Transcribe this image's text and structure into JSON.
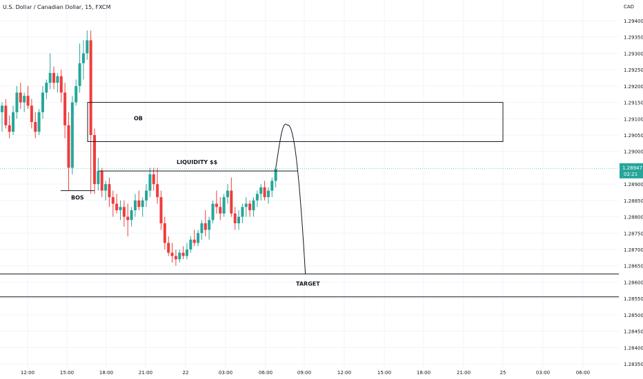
{
  "title": "U.S. Dollar / Canadian Dollar, 15, FXCM",
  "currency": "CAD",
  "current_price": {
    "value": "1.28947",
    "countdown": "02:21",
    "color": "#26a69a"
  },
  "colors": {
    "up": "#26a69a",
    "down": "#ef3c3c",
    "grid": "#f0f3fa",
    "line": "#131722"
  },
  "chart_data": {
    "type": "candlestick",
    "ylim": [
      1.2835,
      1.2945
    ],
    "y_ticks": [
      "1.29400",
      "1.29350",
      "1.29300",
      "1.29250",
      "1.29200",
      "1.29150",
      "1.29100",
      "1.29050",
      "1.29000",
      "1.28900",
      "1.28850",
      "1.28800",
      "1.28750",
      "1.28700",
      "1.28650",
      "1.28600",
      "1.28550",
      "1.28500",
      "1.28450",
      "1.28400",
      "1.28350"
    ],
    "x_ticks": [
      "12:00",
      "15:00",
      "18:00",
      "21:00",
      "22",
      "03:00",
      "06:00",
      "09:00",
      "12:00",
      "15:00",
      "18:00",
      "21:00",
      "25",
      "03:00",
      "06:00"
    ],
    "candles": [
      [
        1.2912,
        1.2915,
        1.2906,
        1.2914
      ],
      [
        1.2914,
        1.2916,
        1.2907,
        1.2908
      ],
      [
        1.2908,
        1.2911,
        1.2904,
        1.2906
      ],
      [
        1.2906,
        1.2914,
        1.2905,
        1.2912
      ],
      [
        1.2912,
        1.292,
        1.291,
        1.2918
      ],
      [
        1.2918,
        1.2921,
        1.2913,
        1.2915
      ],
      [
        1.2915,
        1.2918,
        1.2912,
        1.2917
      ],
      [
        1.2917,
        1.292,
        1.2913,
        1.2914
      ],
      [
        1.2914,
        1.2916,
        1.2907,
        1.2909
      ],
      [
        1.2909,
        1.2912,
        1.2904,
        1.2906
      ],
      [
        1.2906,
        1.2913,
        1.2905,
        1.2912
      ],
      [
        1.2912,
        1.292,
        1.291,
        1.2918
      ],
      [
        1.2918,
        1.2922,
        1.2916,
        1.2921
      ],
      [
        1.2921,
        1.293,
        1.2919,
        1.2924
      ],
      [
        1.2924,
        1.2926,
        1.2919,
        1.2921
      ],
      [
        1.2921,
        1.2924,
        1.2918,
        1.2923
      ],
      [
        1.2923,
        1.2925,
        1.2915,
        1.2918
      ],
      [
        1.2918,
        1.2921,
        1.2904,
        1.2908
      ],
      [
        1.2908,
        1.2912,
        1.2888,
        1.2895
      ],
      [
        1.2895,
        1.2917,
        1.2893,
        1.2915
      ],
      [
        1.2915,
        1.2922,
        1.2914,
        1.292
      ],
      [
        1.292,
        1.2933,
        1.2918,
        1.2927
      ],
      [
        1.2927,
        1.2934,
        1.2922,
        1.293
      ],
      [
        1.293,
        1.2937,
        1.2928,
        1.2934
      ],
      [
        1.2934,
        1.2937,
        1.2887,
        1.2905
      ],
      [
        1.2905,
        1.2907,
        1.2887,
        1.289
      ],
      [
        1.289,
        1.2898,
        1.2888,
        1.2894
      ],
      [
        1.2894,
        1.2895,
        1.2886,
        1.2888
      ],
      [
        1.2888,
        1.2891,
        1.2885,
        1.289
      ],
      [
        1.289,
        1.2892,
        1.2883,
        1.2886
      ],
      [
        1.2886,
        1.2888,
        1.288,
        1.2884
      ],
      [
        1.2884,
        1.2887,
        1.2881,
        1.2882
      ],
      [
        1.2882,
        1.2885,
        1.2879,
        1.2883
      ],
      [
        1.2883,
        1.2885,
        1.2877,
        1.288
      ],
      [
        1.288,
        1.2884,
        1.2874,
        1.2879
      ],
      [
        1.2879,
        1.2883,
        1.2877,
        1.2882
      ],
      [
        1.2882,
        1.2887,
        1.288,
        1.2885
      ],
      [
        1.2885,
        1.2888,
        1.2882,
        1.2883
      ],
      [
        1.2883,
        1.2886,
        1.288,
        1.2885
      ],
      [
        1.2885,
        1.289,
        1.2883,
        1.2888
      ],
      [
        1.2888,
        1.2895,
        1.2886,
        1.2893
      ],
      [
        1.2893,
        1.2895,
        1.2888,
        1.289
      ],
      [
        1.289,
        1.2895,
        1.2884,
        1.2886
      ],
      [
        1.2886,
        1.2888,
        1.2876,
        1.2878
      ],
      [
        1.2878,
        1.288,
        1.287,
        1.2872
      ],
      [
        1.2872,
        1.2874,
        1.2868,
        1.2869
      ],
      [
        1.2869,
        1.2872,
        1.2866,
        1.2868
      ],
      [
        1.2868,
        1.287,
        1.2865,
        1.2867
      ],
      [
        1.2867,
        1.287,
        1.2866,
        1.2869
      ],
      [
        1.2869,
        1.2871,
        1.2867,
        1.2868
      ],
      [
        1.2868,
        1.2872,
        1.2867,
        1.287
      ],
      [
        1.287,
        1.2874,
        1.2869,
        1.2873
      ],
      [
        1.2873,
        1.2876,
        1.2871,
        1.2872
      ],
      [
        1.2872,
        1.2876,
        1.2871,
        1.2875
      ],
      [
        1.2875,
        1.2879,
        1.2873,
        1.2878
      ],
      [
        1.2878,
        1.2882,
        1.2874,
        1.2876
      ],
      [
        1.2876,
        1.288,
        1.2873,
        1.2879
      ],
      [
        1.2879,
        1.2885,
        1.2878,
        1.2884
      ],
      [
        1.2884,
        1.2888,
        1.2881,
        1.2883
      ],
      [
        1.2883,
        1.2886,
        1.2879,
        1.2881
      ],
      [
        1.2881,
        1.2887,
        1.288,
        1.2886
      ],
      [
        1.2886,
        1.289,
        1.2884,
        1.2888
      ],
      [
        1.2888,
        1.2892,
        1.288,
        1.2881
      ],
      [
        1.2881,
        1.2883,
        1.2876,
        1.2878
      ],
      [
        1.2878,
        1.2882,
        1.2876,
        1.288
      ],
      [
        1.288,
        1.2884,
        1.2878,
        1.2883
      ],
      [
        1.2883,
        1.2886,
        1.288,
        1.2884
      ],
      [
        1.2884,
        1.2885,
        1.288,
        1.2882
      ],
      [
        1.2882,
        1.2886,
        1.288,
        1.2885
      ],
      [
        1.2885,
        1.2888,
        1.2883,
        1.2887
      ],
      [
        1.2887,
        1.289,
        1.2885,
        1.2889
      ],
      [
        1.2889,
        1.2891,
        1.2885,
        1.2886
      ],
      [
        1.2886,
        1.2889,
        1.2884,
        1.2888
      ],
      [
        1.2888,
        1.2892,
        1.2886,
        1.2891
      ],
      [
        1.2891,
        1.2895,
        1.2889,
        1.28947
      ]
    ],
    "annotations": {
      "ob_box": {
        "label": "OB",
        "top": 1.2915,
        "bottom": 1.2903
      },
      "liquidity_line": {
        "label": "LIQUIDITY $$",
        "price": 1.2894
      },
      "bos_line": {
        "label": "BOS",
        "price": 1.2888
      },
      "target_lines": {
        "label": "TARGET",
        "upper": 1.28625,
        "lower": 1.28555
      },
      "projection_peak": 1.2908
    }
  }
}
